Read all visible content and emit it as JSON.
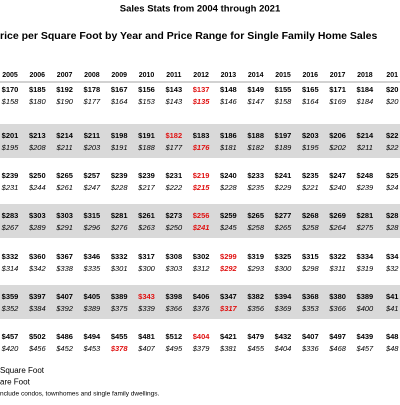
{
  "title": "Sales Stats from 2004 through 2021",
  "subtitle": "rice per Square Foot by Year and Price Range for Single Family Home Sales",
  "table": {
    "header": [
      "2005",
      "2006",
      "2007",
      "2008",
      "2009",
      "2010",
      "2011",
      "2012",
      "2013",
      "2014",
      "2015",
      "2016",
      "2017",
      "2018",
      "201"
    ],
    "highlight_color": "#e01010",
    "shade_color": "#d9d9d9",
    "rows": [
      {
        "top": [
          "$170",
          "$185",
          "$192",
          "$178",
          "$167",
          "$156",
          "$143",
          "$137",
          "$148",
          "$149",
          "$155",
          "$165",
          "$171",
          "$184",
          "$20"
        ],
        "top_highlight": 7,
        "bottom": [
          "$158",
          "$180",
          "$190",
          "$177",
          "$164",
          "$153",
          "$143",
          "$135",
          "$146",
          "$147",
          "$158",
          "$164",
          "$169",
          "$184",
          "$20"
        ],
        "bottom_highlight": 7
      },
      {
        "top": [
          "$201",
          "$213",
          "$214",
          "$211",
          "$198",
          "$191",
          "$182",
          "$183",
          "$186",
          "$188",
          "$197",
          "$203",
          "$206",
          "$214",
          "$22"
        ],
        "top_highlight": 6,
        "bottom": [
          "$195",
          "$208",
          "$211",
          "$203",
          "$191",
          "$188",
          "$177",
          "$176",
          "$181",
          "$182",
          "$189",
          "$195",
          "$202",
          "$211",
          "$22"
        ],
        "bottom_highlight": 7
      },
      {
        "top": [
          "$239",
          "$250",
          "$265",
          "$257",
          "$239",
          "$239",
          "$231",
          "$219",
          "$240",
          "$233",
          "$241",
          "$235",
          "$247",
          "$248",
          "$25"
        ],
        "top_highlight": 7,
        "bottom": [
          "$231",
          "$244",
          "$261",
          "$247",
          "$228",
          "$217",
          "$222",
          "$215",
          "$228",
          "$235",
          "$229",
          "$221",
          "$240",
          "$239",
          "$24"
        ],
        "bottom_highlight": 7
      },
      {
        "top": [
          "$283",
          "$303",
          "$303",
          "$315",
          "$281",
          "$261",
          "$273",
          "$256",
          "$259",
          "$265",
          "$277",
          "$268",
          "$269",
          "$281",
          "$28"
        ],
        "top_highlight": 7,
        "bottom": [
          "$267",
          "$289",
          "$291",
          "$296",
          "$276",
          "$263",
          "$250",
          "$241",
          "$245",
          "$258",
          "$265",
          "$258",
          "$264",
          "$275",
          "$28"
        ],
        "bottom_highlight": 7
      },
      {
        "top": [
          "$332",
          "$360",
          "$367",
          "$346",
          "$332",
          "$317",
          "$308",
          "$302",
          "$299",
          "$319",
          "$325",
          "$315",
          "$322",
          "$334",
          "$34"
        ],
        "top_highlight": 8,
        "bottom": [
          "$314",
          "$342",
          "$338",
          "$335",
          "$301",
          "$300",
          "$303",
          "$312",
          "$292",
          "$293",
          "$300",
          "$298",
          "$311",
          "$319",
          "$32"
        ],
        "bottom_highlight": 8
      },
      {
        "top": [
          "$359",
          "$397",
          "$407",
          "$405",
          "$389",
          "$343",
          "$398",
          "$406",
          "$347",
          "$382",
          "$394",
          "$368",
          "$380",
          "$389",
          "$41"
        ],
        "top_highlight": 5,
        "bottom": [
          "$352",
          "$384",
          "$392",
          "$389",
          "$375",
          "$339",
          "$366",
          "$376",
          "$317",
          "$356",
          "$369",
          "$353",
          "$366",
          "$400",
          "$41"
        ],
        "bottom_highlight": 8
      },
      {
        "top": [
          "$457",
          "$502",
          "$486",
          "$494",
          "$455",
          "$481",
          "$512",
          "$404",
          "$421",
          "$479",
          "$432",
          "$407",
          "$497",
          "$439",
          "$48"
        ],
        "top_highlight": 7,
        "bottom": [
          "$420",
          "$456",
          "$452",
          "$453",
          "$378",
          "$407",
          "$495",
          "$379",
          "$381",
          "$455",
          "$404",
          "$336",
          "$468",
          "$457",
          "$48"
        ],
        "bottom_highlight": 4
      }
    ]
  },
  "footnotes": [
    "Square Foot",
    "are Foot",
    "nclude condos, townhomes and single family dwellings."
  ]
}
